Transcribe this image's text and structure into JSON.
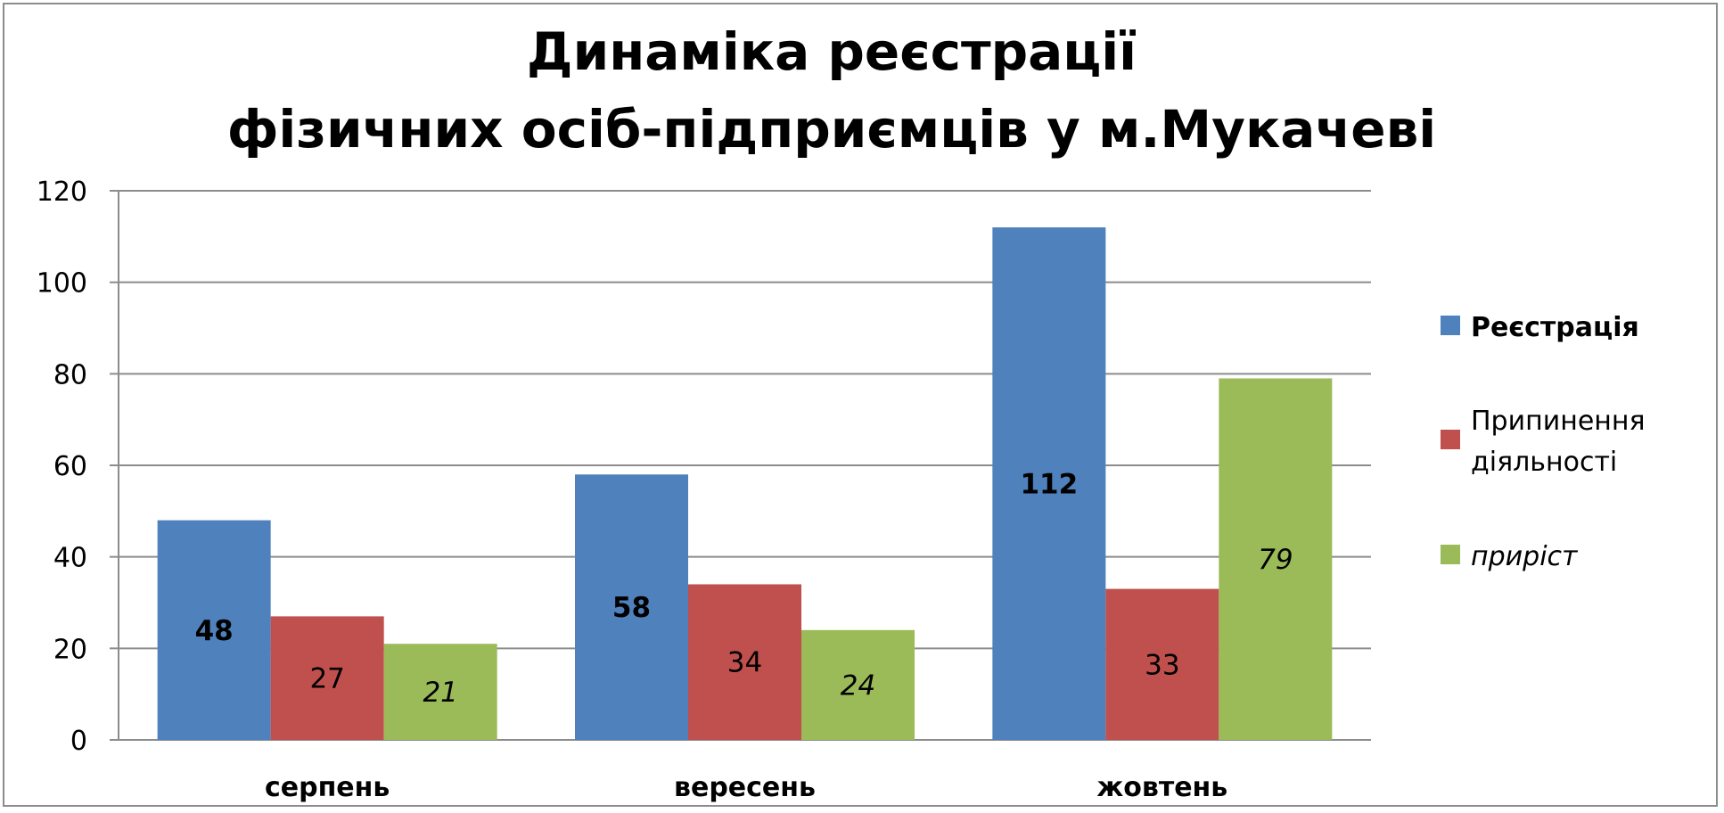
{
  "chart_data": {
    "type": "bar",
    "title_lines": [
      "Динаміка реєстрації",
      "фізичних осіб-підприємців у м.Мукачеві"
    ],
    "categories": [
      "серпень",
      "вересень",
      "жовтень"
    ],
    "series": [
      {
        "name": "Реєстрація",
        "values": [
          48,
          58,
          112
        ],
        "color": "#4f81bd",
        "label_style": "bold"
      },
      {
        "name": "Припинення діяльності",
        "name_lines": [
          "Припинення",
          "діяльності"
        ],
        "values": [
          27,
          34,
          33
        ],
        "color": "#c0504d",
        "label_style": "normal"
      },
      {
        "name": "приріст",
        "values": [
          21,
          24,
          79
        ],
        "color": "#9bbb59",
        "label_style": "italic"
      }
    ],
    "ylim": [
      0,
      120
    ],
    "yticks": [
      0,
      20,
      40,
      60,
      80,
      100,
      120
    ],
    "grid": true,
    "legend_position": "right",
    "xlabel": "",
    "ylabel": ""
  }
}
